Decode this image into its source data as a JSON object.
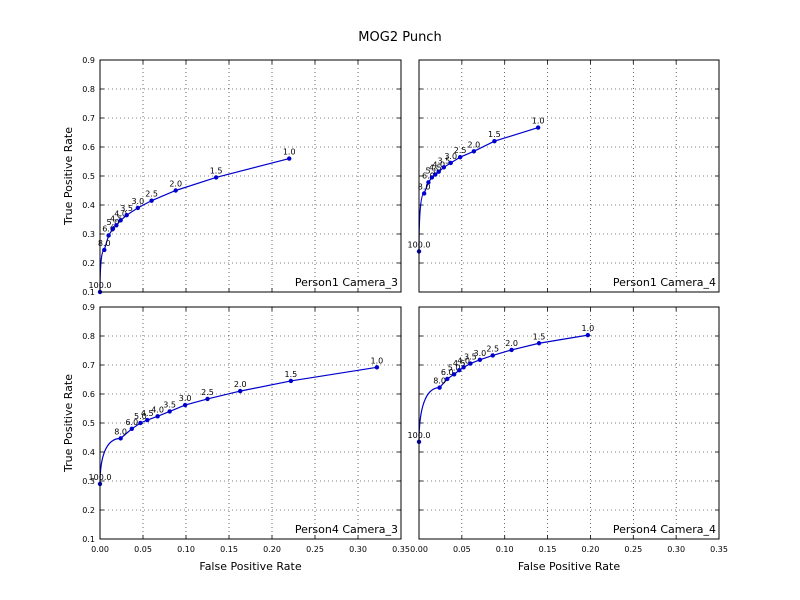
{
  "chart_data": {
    "type": "line",
    "title": "MOG2 Punch",
    "xlabel": "False Positive Rate",
    "ylabel": "True Positive Rate",
    "xlim": [
      0.0,
      0.35
    ],
    "x_ticks": [
      "0.00",
      "0.05",
      "0.10",
      "0.15",
      "0.20",
      "0.25",
      "0.30",
      "0.35"
    ],
    "grid": true,
    "panels": [
      {
        "name": "Person1 Camera_3",
        "ylim": [
          0.1,
          0.9
        ],
        "y_ticks": [
          "0.1",
          "0.2",
          "0.3",
          "0.4",
          "0.5",
          "0.6",
          "0.7",
          "0.8",
          "0.9"
        ],
        "points": [
          {
            "label": "100.0",
            "x": 0.0,
            "y": 0.1
          },
          {
            "label": "8.0",
            "x": 0.005,
            "y": 0.245
          },
          {
            "label": "6.0",
            "x": 0.01,
            "y": 0.295
          },
          {
            "label": "5.0",
            "x": 0.015,
            "y": 0.318
          },
          {
            "label": "4.5",
            "x": 0.019,
            "y": 0.33
          },
          {
            "label": "4.0",
            "x": 0.024,
            "y": 0.347
          },
          {
            "label": "3.5",
            "x": 0.031,
            "y": 0.365
          },
          {
            "label": "3.0",
            "x": 0.044,
            "y": 0.39
          },
          {
            "label": "2.5",
            "x": 0.06,
            "y": 0.415
          },
          {
            "label": "2.0",
            "x": 0.088,
            "y": 0.45
          },
          {
            "label": "1.5",
            "x": 0.135,
            "y": 0.495
          },
          {
            "label": "1.0",
            "x": 0.22,
            "y": 0.56
          }
        ]
      },
      {
        "name": "Person1 Camera_4",
        "ylim": [
          0.1,
          0.9
        ],
        "y_ticks": [],
        "points": [
          {
            "label": "100.0",
            "x": 0.0,
            "y": 0.24
          },
          {
            "label": "8.0",
            "x": 0.006,
            "y": 0.44
          },
          {
            "label": "6.0",
            "x": 0.011,
            "y": 0.478
          },
          {
            "label": "5.0",
            "x": 0.015,
            "y": 0.495
          },
          {
            "label": "4.5",
            "x": 0.019,
            "y": 0.505
          },
          {
            "label": "4.0",
            "x": 0.023,
            "y": 0.515
          },
          {
            "label": "3.5",
            "x": 0.029,
            "y": 0.53
          },
          {
            "label": "3.0",
            "x": 0.037,
            "y": 0.545
          },
          {
            "label": "2.5",
            "x": 0.048,
            "y": 0.565
          },
          {
            "label": "2.0",
            "x": 0.064,
            "y": 0.585
          },
          {
            "label": "1.5",
            "x": 0.088,
            "y": 0.62
          },
          {
            "label": "1.0",
            "x": 0.139,
            "y": 0.667
          }
        ]
      },
      {
        "name": "Person4 Camera_3",
        "ylim": [
          0.1,
          0.9
        ],
        "y_ticks": [
          "0.1",
          "0.2",
          "0.3",
          "0.4",
          "0.5",
          "0.6",
          "0.7",
          "0.8",
          "0.9"
        ],
        "points": [
          {
            "label": "100.0",
            "x": 0.0,
            "y": 0.29
          },
          {
            "label": "8.0",
            "x": 0.024,
            "y": 0.447
          },
          {
            "label": "6.0",
            "x": 0.037,
            "y": 0.48
          },
          {
            "label": "5.0",
            "x": 0.047,
            "y": 0.5
          },
          {
            "label": "4.5",
            "x": 0.055,
            "y": 0.51
          },
          {
            "label": "4.0",
            "x": 0.067,
            "y": 0.523
          },
          {
            "label": "3.5",
            "x": 0.081,
            "y": 0.54
          },
          {
            "label": "3.0",
            "x": 0.099,
            "y": 0.562
          },
          {
            "label": "2.5",
            "x": 0.125,
            "y": 0.583
          },
          {
            "label": "2.0",
            "x": 0.163,
            "y": 0.61
          },
          {
            "label": "1.5",
            "x": 0.222,
            "y": 0.645
          },
          {
            "label": "1.0",
            "x": 0.322,
            "y": 0.692
          }
        ]
      },
      {
        "name": "Person4 Camera_4",
        "ylim": [
          0.1,
          0.9
        ],
        "y_ticks": [],
        "points": [
          {
            "label": "100.0",
            "x": 0.0,
            "y": 0.435
          },
          {
            "label": "8.0",
            "x": 0.024,
            "y": 0.622
          },
          {
            "label": "6.0",
            "x": 0.033,
            "y": 0.652
          },
          {
            "label": "5.0",
            "x": 0.041,
            "y": 0.668
          },
          {
            "label": "4.5",
            "x": 0.047,
            "y": 0.682
          },
          {
            "label": "4.0",
            "x": 0.052,
            "y": 0.692
          },
          {
            "label": "3.5",
            "x": 0.06,
            "y": 0.705
          },
          {
            "label": "3.0",
            "x": 0.071,
            "y": 0.718
          },
          {
            "label": "2.5",
            "x": 0.086,
            "y": 0.733
          },
          {
            "label": "2.0",
            "x": 0.108,
            "y": 0.752
          },
          {
            "label": "1.5",
            "x": 0.14,
            "y": 0.775
          },
          {
            "label": "1.0",
            "x": 0.197,
            "y": 0.803
          }
        ]
      }
    ]
  }
}
